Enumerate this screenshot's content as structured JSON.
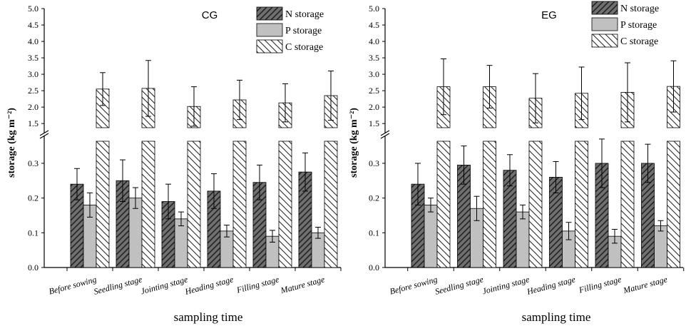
{
  "chart_data": [
    {
      "type": "bar",
      "panel_label": "CG",
      "categories": [
        "Before sowing",
        "Seedling stage",
        "Jointing stage",
        "Heading stage",
        "Filling stage",
        "Mature stage"
      ],
      "series": [
        {
          "name": "N storage",
          "values": [
            0.24,
            0.25,
            0.19,
            0.22,
            0.245,
            0.275
          ],
          "errors": [
            0.045,
            0.06,
            0.05,
            0.05,
            0.05,
            0.055
          ],
          "pattern": "dark-hatch",
          "color": "#6f6f6f"
        },
        {
          "name": "P storage",
          "values": [
            0.18,
            0.2,
            0.14,
            0.105,
            0.09,
            0.1
          ],
          "errors": [
            0.035,
            0.03,
            0.02,
            0.017,
            0.017,
            0.016
          ],
          "pattern": "solid",
          "color": "#c0c0c0"
        },
        {
          "name": "C storage",
          "values": [
            2.55,
            2.57,
            2.02,
            2.22,
            2.13,
            2.35
          ],
          "errors": [
            0.5,
            0.85,
            0.6,
            0.6,
            0.58,
            0.75
          ],
          "pattern": "light-hatch",
          "color": "#ffffff"
        }
      ],
      "xlabel": "sampling time",
      "ylabel": "storage (kg m⁻²)",
      "ylim_lower": [
        0.0,
        0.38
      ],
      "ylim_upper": [
        1.2,
        5.0
      ],
      "yticks_lower": [
        "0.0",
        "0.1",
        "0.2",
        "0.3"
      ],
      "yticks_upper": [
        "1.5",
        "2.0",
        "2.5",
        "3.0",
        "3.5",
        "4.0",
        "4.5",
        "5.0"
      ],
      "legend_position": "top-right"
    },
    {
      "type": "bar",
      "panel_label": "EG",
      "categories": [
        "Before sowing",
        "Seedling stage",
        "Jointing stage",
        "Heading stage",
        "Filling stage",
        "Mature stage"
      ],
      "series": [
        {
          "name": "N storage",
          "values": [
            0.24,
            0.295,
            0.28,
            0.26,
            0.3,
            0.3
          ],
          "errors": [
            0.06,
            0.055,
            0.045,
            0.045,
            0.07,
            0.055
          ],
          "pattern": "dark-hatch",
          "color": "#6f6f6f"
        },
        {
          "name": "P storage",
          "values": [
            0.18,
            0.17,
            0.16,
            0.105,
            0.09,
            0.12
          ],
          "errors": [
            0.02,
            0.035,
            0.02,
            0.025,
            0.02,
            0.015
          ],
          "pattern": "solid",
          "color": "#c0c0c0"
        },
        {
          "name": "C storage",
          "values": [
            2.62,
            2.62,
            2.27,
            2.42,
            2.45,
            2.63
          ],
          "errors": [
            0.85,
            0.65,
            0.75,
            0.8,
            0.9,
            0.78
          ],
          "pattern": "light-hatch",
          "color": "#ffffff"
        }
      ],
      "xlabel": "sampling time",
      "ylabel": "storage (kg m⁻²)",
      "ylim_lower": [
        0.0,
        0.38
      ],
      "ylim_upper": [
        1.2,
        5.0
      ],
      "yticks_lower": [
        "0.0",
        "0.1",
        "0.2",
        "0.3"
      ],
      "yticks_upper": [
        "1.5",
        "2.0",
        "2.5",
        "3.0",
        "3.5",
        "4.0",
        "4.5",
        "5.0"
      ],
      "legend_position": "top-right"
    }
  ]
}
